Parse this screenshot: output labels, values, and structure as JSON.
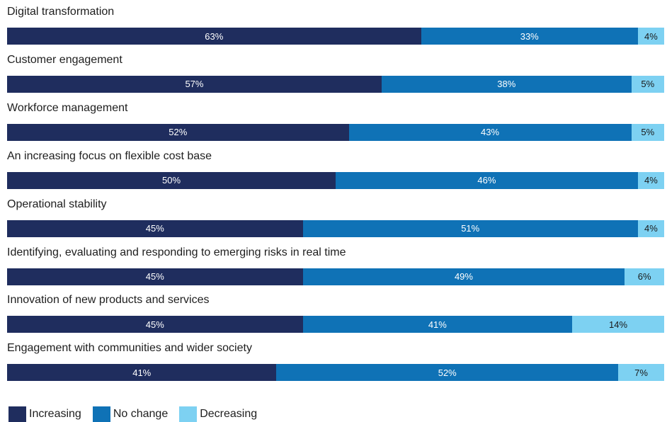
{
  "chart_data": {
    "type": "bar",
    "orientation": "horizontal",
    "stacked": true,
    "percent_stacked": true,
    "categories": [
      "Digital transformation",
      "Customer engagement",
      "Workforce management",
      "An increasing focus on flexible cost base",
      "Operational stability",
      "Identifying, evaluating and responding to emerging risks in real time",
      "Innovation of new products and services",
      "Engagement with communities and wider society"
    ],
    "series": [
      {
        "name": "Increasing",
        "color": "#1f2d5e",
        "values": [
          63,
          57,
          52,
          50,
          45,
          45,
          45,
          41
        ]
      },
      {
        "name": "No change",
        "color": "#0f72b6",
        "values": [
          33,
          38,
          43,
          46,
          51,
          49,
          41,
          52
        ]
      },
      {
        "name": "Decreasing",
        "color": "#7dd1f2",
        "values": [
          4,
          5,
          5,
          4,
          4,
          6,
          14,
          7
        ]
      }
    ],
    "value_suffix": "%",
    "xlim": [
      0,
      100
    ],
    "grid": false,
    "legend_position": "bottom-left"
  }
}
